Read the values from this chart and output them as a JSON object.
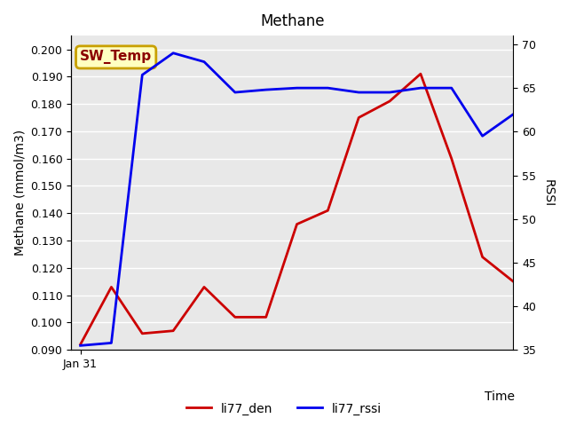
{
  "title": "Methane",
  "ylabel_left": "Methane (mmol/m3)",
  "ylabel_right": "RSSI",
  "xlabel": "Time",
  "x_tick_label": "Jan 31",
  "ylim_left": [
    0.09,
    0.205
  ],
  "ylim_right": [
    35,
    71
  ],
  "yticks_left": [
    0.09,
    0.1,
    0.11,
    0.12,
    0.13,
    0.14,
    0.15,
    0.16,
    0.17,
    0.18,
    0.19,
    0.2
  ],
  "yticks_right": [
    35,
    40,
    45,
    50,
    55,
    60,
    65,
    70
  ],
  "plot_bg_color": "#e8e8e8",
  "fig_bg_color": "#ffffff",
  "annotation_text": "SW_Temp",
  "annotation_box_facecolor": "#ffffc0",
  "annotation_box_edgecolor": "#c8a000",
  "annotation_text_color": "#8b0000",
  "li77_den_color": "#cc0000",
  "li77_rssi_color": "#0000ee",
  "li77_den_x": [
    0,
    1,
    2,
    3,
    4,
    5,
    6,
    7,
    8,
    9,
    10,
    11,
    12,
    13,
    14
  ],
  "li77_den_y": [
    0.092,
    0.113,
    0.096,
    0.097,
    0.113,
    0.102,
    0.102,
    0.136,
    0.141,
    0.175,
    0.181,
    0.191,
    0.16,
    0.124,
    0.115
  ],
  "li77_rssi_x": [
    0,
    1,
    2,
    3,
    4,
    5,
    6,
    7,
    8,
    9,
    10,
    11,
    12,
    13,
    14
  ],
  "li77_rssi_y": [
    35.5,
    35.8,
    66.5,
    69.0,
    68.0,
    64.5,
    64.8,
    65.0,
    65.0,
    64.5,
    64.5,
    65.0,
    65.0,
    59.5,
    62.0
  ],
  "legend_li77_den": "li77_den",
  "legend_li77_rssi": "li77_rssi",
  "grid_color": "#ffffff",
  "grid_linewidth": 1.0,
  "line_width": 2.0,
  "title_fontsize": 12,
  "label_fontsize": 10,
  "tick_fontsize": 9,
  "legend_fontsize": 10,
  "annotation_fontsize": 11
}
